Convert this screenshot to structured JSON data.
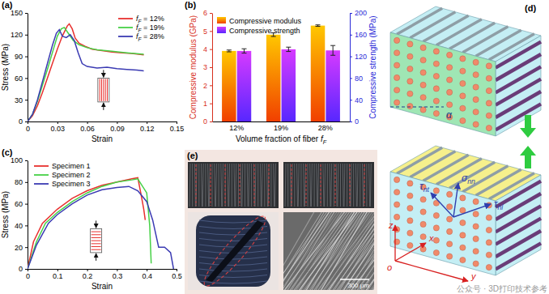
{
  "chart_data": [
    {
      "type": "line",
      "title": "(a)",
      "x_label": "Strain",
      "y_label": "Stress (MPa)",
      "xlim": [
        0,
        0.15
      ],
      "xticks": [
        0,
        0.03,
        0.06,
        0.09,
        0.12,
        0.15
      ],
      "ylim": [
        0,
        150
      ],
      "yticks": [
        0,
        30,
        60,
        90,
        120,
        150
      ],
      "legend": "upper right",
      "series": [
        {
          "name": "fF = 12%",
          "color": "#e8312f",
          "x": [
            0,
            0.005,
            0.01,
            0.015,
            0.02,
            0.025,
            0.03,
            0.035,
            0.04,
            0.042,
            0.045,
            0.048,
            0.052,
            0.058,
            0.065,
            0.075,
            0.085,
            0.095,
            0.105,
            0.117
          ],
          "values": [
            0,
            8,
            22,
            40,
            60,
            80,
            100,
            118,
            132,
            135,
            128,
            115,
            108,
            104,
            100,
            98,
            96,
            95,
            94,
            92
          ]
        },
        {
          "name": "fF = 19%",
          "color": "#47d147",
          "x": [
            0,
            0.005,
            0.01,
            0.015,
            0.02,
            0.025,
            0.03,
            0.034,
            0.037,
            0.041,
            0.046,
            0.052,
            0.06,
            0.07,
            0.085,
            0.1,
            0.117
          ],
          "values": [
            0,
            10,
            28,
            50,
            72,
            95,
            118,
            128,
            130,
            122,
            112,
            106,
            102,
            99,
            97,
            95,
            93
          ]
        },
        {
          "name": "fF = 28%",
          "color": "#3b3bb3",
          "x": [
            0,
            0.005,
            0.01,
            0.015,
            0.02,
            0.025,
            0.029,
            0.032,
            0.035,
            0.039,
            0.043,
            0.047,
            0.051,
            0.055,
            0.06,
            0.07,
            0.08,
            0.09,
            0.1,
            0.11,
            0.117
          ],
          "values": [
            0,
            10,
            30,
            55,
            80,
            105,
            122,
            127,
            118,
            116,
            120,
            112,
            95,
            80,
            76,
            74,
            75,
            73,
            72,
            71,
            70
          ]
        }
      ]
    },
    {
      "type": "bar",
      "title": "(b)",
      "x_label": "Volume fraction of fiber fF",
      "y_label": "Compressive modulus (GPa)",
      "y2_label": "Compressive strength (MPa)",
      "categories": [
        "12%",
        "19%",
        "28%"
      ],
      "ylim": [
        0,
        6
      ],
      "yticks": [
        0,
        1,
        2,
        3,
        4,
        5,
        6
      ],
      "y2lim": [
        0,
        200
      ],
      "y2ticks": [
        0,
        40,
        80,
        120,
        160,
        200
      ],
      "legend": "upper left",
      "series": [
        {
          "name": "Compressive modulus",
          "color": "#ff8c00",
          "values": [
            3.9,
            4.8,
            5.3
          ],
          "errors": [
            0.05,
            0.1,
            0.04
          ]
        },
        {
          "name": "Compressive strength",
          "color": "#9b30ff",
          "axis": "y2",
          "values": [
            130,
            133,
            131
          ],
          "errors": [
            4,
            4,
            9
          ]
        }
      ]
    },
    {
      "type": "line",
      "title": "(c)",
      "x_label": "Strain",
      "y_label": "Stress (MPa)",
      "xlim": [
        0,
        0.5
      ],
      "xticks": [
        0,
        0.1,
        0.2,
        0.3,
        0.4,
        0.5
      ],
      "ylim": [
        0,
        100
      ],
      "yticks": [
        0,
        20,
        40,
        60,
        80,
        100
      ],
      "legend": "upper left",
      "series": [
        {
          "name": "Specimen 1",
          "color": "#e8312f",
          "x": [
            0,
            0.02,
            0.05,
            0.1,
            0.15,
            0.2,
            0.25,
            0.3,
            0.35,
            0.37,
            0.38,
            0.39,
            0.395
          ],
          "values": [
            0,
            25,
            42,
            55,
            65,
            72,
            77,
            80,
            83,
            84,
            70,
            55,
            45
          ]
        },
        {
          "name": "Specimen 2",
          "color": "#47d147",
          "x": [
            0,
            0.03,
            0.06,
            0.1,
            0.15,
            0.2,
            0.25,
            0.3,
            0.35,
            0.37,
            0.4,
            0.41,
            0.415
          ],
          "values": [
            0,
            25,
            42,
            52,
            62,
            70,
            76,
            80,
            82,
            83,
            70,
            40,
            5
          ]
        },
        {
          "name": "Specimen 3",
          "color": "#3b3bb3",
          "x": [
            0,
            0.03,
            0.07,
            0.1,
            0.15,
            0.2,
            0.25,
            0.3,
            0.34,
            0.37,
            0.4,
            0.42,
            0.44,
            0.46,
            0.48,
            0.49
          ],
          "values": [
            0,
            22,
            42,
            50,
            60,
            68,
            73,
            75,
            76,
            72,
            62,
            45,
            20,
            20,
            15,
            0
          ]
        }
      ]
    }
  ],
  "diagram": {
    "title": "(d)",
    "angle_label": "α",
    "stress_labels": [
      "τnt",
      "σnn",
      "τnl"
    ],
    "axis_labels": [
      "z",
      "x",
      "y"
    ],
    "origin_label": "o"
  },
  "photos": {
    "title": "(e)",
    "scale_bar": "300 μm"
  },
  "watermark": "公众号 · 3D打印技术参考"
}
